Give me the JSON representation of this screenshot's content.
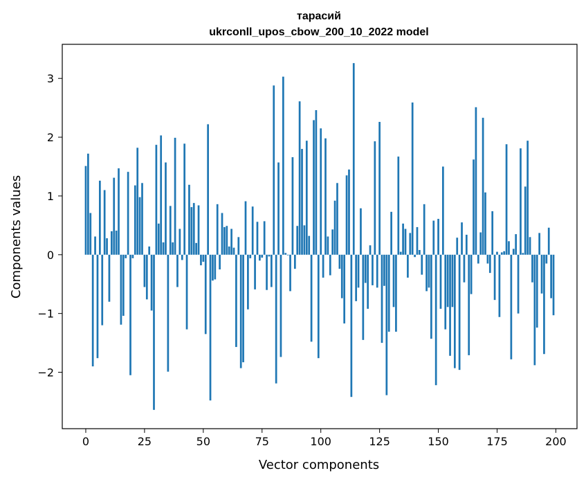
{
  "chart_data": {
    "type": "bar",
    "title": "тарасий",
    "subtitle": "ukrconll_upos_cbow_200_10_2022 model",
    "xlabel": "Vector components",
    "ylabel": "Components values",
    "xlim": [
      -10,
      209
    ],
    "ylim": [
      -2.96,
      3.58
    ],
    "xticks": [
      0,
      25,
      50,
      75,
      100,
      125,
      150,
      175,
      200
    ],
    "yticks": [
      -2,
      -1,
      0,
      1,
      2,
      3
    ],
    "grid": false,
    "legend": "none",
    "bar_color": "#1f77b4",
    "x": [
      0,
      1,
      2,
      3,
      4,
      5,
      6,
      7,
      8,
      9,
      10,
      11,
      12,
      13,
      14,
      15,
      16,
      17,
      18,
      19,
      20,
      21,
      22,
      23,
      24,
      25,
      26,
      27,
      28,
      29,
      30,
      31,
      32,
      33,
      34,
      35,
      36,
      37,
      38,
      39,
      40,
      41,
      42,
      43,
      44,
      45,
      46,
      47,
      48,
      49,
      50,
      51,
      52,
      53,
      54,
      55,
      56,
      57,
      58,
      59,
      60,
      61,
      62,
      63,
      64,
      65,
      66,
      67,
      68,
      69,
      70,
      71,
      72,
      73,
      74,
      75,
      76,
      77,
      78,
      79,
      80,
      81,
      82,
      83,
      84,
      85,
      86,
      87,
      88,
      89,
      90,
      91,
      92,
      93,
      94,
      95,
      96,
      97,
      98,
      99,
      100,
      101,
      102,
      103,
      104,
      105,
      106,
      107,
      108,
      109,
      110,
      111,
      112,
      113,
      114,
      115,
      116,
      117,
      118,
      119,
      120,
      121,
      122,
      123,
      124,
      125,
      126,
      127,
      128,
      129,
      130,
      131,
      132,
      133,
      134,
      135,
      136,
      137,
      138,
      139,
      140,
      141,
      142,
      143,
      144,
      145,
      146,
      147,
      148,
      149,
      150,
      151,
      152,
      153,
      154,
      155,
      156,
      157,
      158,
      159,
      160,
      161,
      162,
      163,
      164,
      165,
      166,
      167,
      168,
      169,
      170,
      171,
      172,
      173,
      174,
      175,
      176,
      177,
      178,
      179,
      180,
      181,
      182,
      183,
      184,
      185,
      186,
      187,
      188,
      189,
      190,
      191,
      192,
      193,
      194,
      195,
      196,
      197,
      198,
      199
    ],
    "values": [
      1.51,
      1.72,
      0.71,
      -1.9,
      0.31,
      -1.76,
      1.26,
      -1.2,
      1.1,
      0.28,
      -0.8,
      0.4,
      1.31,
      0.41,
      1.47,
      -1.19,
      -1.04,
      -0.06,
      1.41,
      -2.05,
      -0.06,
      1.18,
      1.82,
      0.98,
      1.22,
      -0.55,
      -0.76,
      0.14,
      -0.95,
      -2.64,
      1.87,
      0.53,
      2.03,
      0.21,
      1.57,
      -1.99,
      0.83,
      0.21,
      1.99,
      -0.55,
      0.44,
      -0.09,
      1.89,
      -1.27,
      1.19,
      0.81,
      0.88,
      0.2,
      0.84,
      -0.18,
      -0.12,
      -1.35,
      2.22,
      -2.48,
      -0.44,
      -0.42,
      0.86,
      -0.25,
      0.71,
      0.47,
      0.49,
      0.14,
      0.44,
      0.12,
      -1.57,
      0.3,
      -1.93,
      -1.83,
      0.91,
      -0.93,
      -0.06,
      0.82,
      -0.59,
      0.56,
      -0.1,
      -0.05,
      0.57,
      -0.6,
      -0.03,
      -0.55,
      2.88,
      -2.19,
      1.57,
      -1.74,
      3.03,
      0.03,
      -0.01,
      -0.62,
      1.66,
      -0.24,
      0.49,
      2.61,
      1.8,
      0.5,
      1.94,
      0.32,
      -1.48,
      2.29,
      2.46,
      -1.76,
      2.15,
      -0.39,
      1.98,
      0.31,
      -0.35,
      0.43,
      0.92,
      1.22,
      -0.24,
      -0.74,
      -1.17,
      1.35,
      1.45,
      -2.42,
      3.26,
      -0.79,
      -0.56,
      0.79,
      -1.45,
      -0.48,
      -0.92,
      0.16,
      -0.52,
      1.93,
      -0.56,
      2.26,
      -1.5,
      -0.53,
      -2.39,
      -1.31,
      0.73,
      -0.89,
      -1.31,
      1.67,
      0.05,
      0.53,
      0.44,
      -0.39,
      0.37,
      2.59,
      -0.04,
      0.47,
      0.08,
      -0.34,
      0.86,
      -0.62,
      -0.56,
      -1.43,
      0.58,
      -2.22,
      0.61,
      -0.92,
      1.5,
      -1.27,
      -0.89,
      -1.72,
      -0.89,
      -1.93,
      0.29,
      -1.96,
      0.55,
      -0.47,
      0.34,
      -1.71,
      -0.67,
      1.62,
      2.51,
      -0.15,
      0.38,
      2.33,
      1.06,
      -0.15,
      -0.31,
      0.74,
      -0.77,
      0.05,
      -1.06,
      0.04,
      0.06,
      1.88,
      0.23,
      -1.78,
      0.1,
      0.35,
      -1.0,
      1.81,
      0.03,
      1.16,
      1.94,
      0.3,
      -0.47,
      -1.88,
      -1.24,
      0.37,
      -0.66,
      -1.69,
      -0.15,
      0.46,
      -0.74,
      -1.03
    ]
  }
}
